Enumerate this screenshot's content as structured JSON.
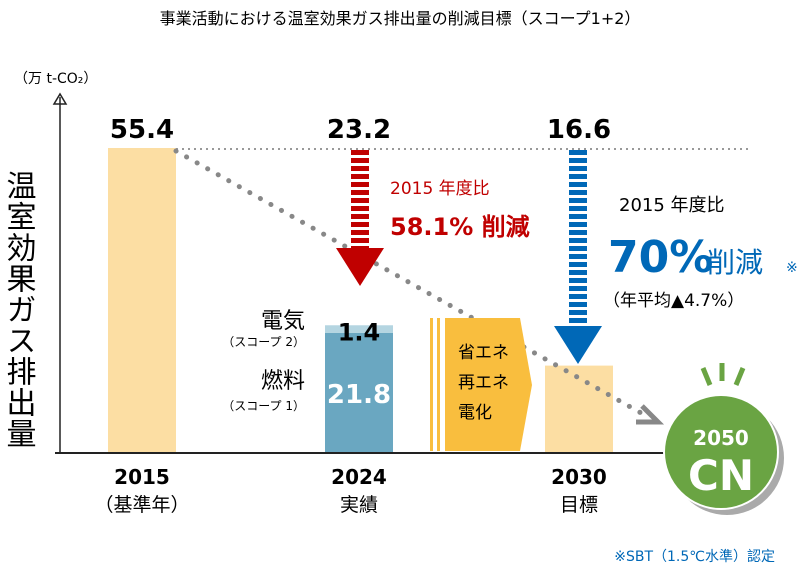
{
  "chart_data": {
    "type": "bar",
    "title": "事業活動における温室効果ガス排出量の削減目標（スコープ1+2）",
    "ylabel": "温室効果ガス排出量",
    "unit": "（万 t-CO₂）",
    "categories": [
      "2015",
      "2024",
      "2030"
    ],
    "category_sublabels": [
      "（基準年）",
      "実績",
      "目標"
    ],
    "values": [
      55.4,
      23.2,
      16.6
    ],
    "value_labels": [
      "55.4",
      "23.2",
      "16.6"
    ],
    "stack_2024": [
      {
        "name": "燃料",
        "sub": "（スコープ 1）",
        "value": 21.8,
        "label": "21.8"
      },
      {
        "name": "電気",
        "sub": "（スコープ 2）",
        "value": 1.4,
        "label": "1.4"
      }
    ],
    "ylim": [
      0,
      62
    ],
    "annotations": {
      "red_line1": "2015 年度比",
      "red_line2": "58.1% 削減",
      "blue_line1": "2015 年度比",
      "blue_pct": "70%",
      "blue_reduce": "削減",
      "blue_mark": "※",
      "blue_line3": "（年平均▲4.7%）",
      "measures": [
        "省エネ",
        "再エネ",
        "電化"
      ],
      "cn_year": "2050",
      "cn_label": "CN",
      "footnote": "※SBT（1.5℃水準）認定"
    },
    "colors": {
      "base": "#fcdea3",
      "scope1": "#6aa7c1",
      "scope2": "#b4d5e1",
      "red": "#c00000",
      "blue": "#0068b7",
      "orange": "#f9be3e",
      "green": "#6aa443"
    }
  }
}
